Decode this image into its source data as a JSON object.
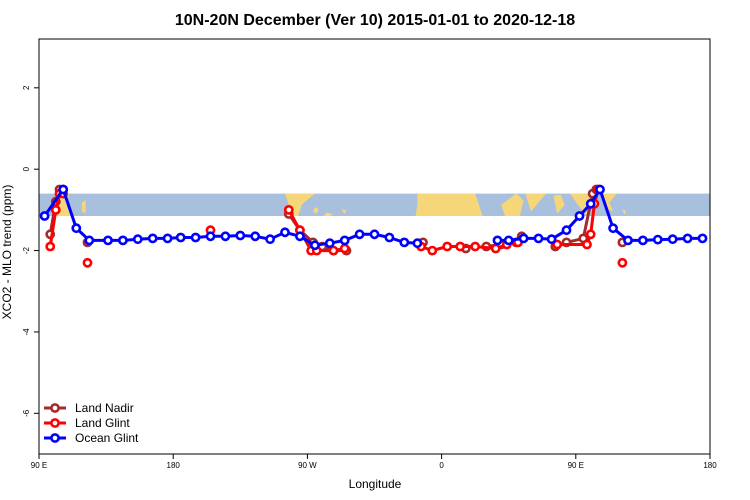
{
  "chart_data": {
    "type": "line",
    "title": "10N-20N December (Ver 10)   2015-01-01 to 2020-12-18",
    "xlabel": "Longitude",
    "ylabel": "XCO2 - MLO trend (ppm)",
    "xlim": [
      0,
      360
    ],
    "ylim": [
      -7,
      3.2
    ],
    "x_ticks": [
      {
        "value": 0,
        "label": "90 E"
      },
      {
        "value": 72,
        "label": "180"
      },
      {
        "value": 144,
        "label": "90 W"
      },
      {
        "value": 216,
        "label": "0"
      },
      {
        "value": 288,
        "label": "90 E"
      },
      {
        "value": 360,
        "label": "180"
      }
    ],
    "y_ticks": [
      {
        "value": 2,
        "label": "2"
      },
      {
        "value": 0,
        "label": "0"
      },
      {
        "value": -2,
        "label": "-2"
      },
      {
        "value": -4,
        "label": "-4"
      },
      {
        "value": -6,
        "label": "-6"
      }
    ],
    "grid": false,
    "legend_position": "bottom-left",
    "map_band": {
      "y_top": -0.6,
      "y_bottom": -1.15,
      "ocean_color": "#a8bfdd",
      "land_color": "#f5d77a"
    },
    "series": [
      {
        "name": "Land Nadir",
        "color": "#a52a2a",
        "segments": [
          [
            [
              6,
              -1.6
            ],
            [
              9,
              -0.8
            ],
            [
              11,
              -0.5
            ],
            [
              13,
              -0.5
            ]
          ],
          [
            [
              26,
              -1.8
            ]
          ],
          [
            [
              134,
              -1.1
            ],
            [
              140,
              -1.5
            ],
            [
              147,
              -1.8
            ]
          ],
          [
            [
              152,
              -1.9
            ],
            [
              158,
              -2.0
            ],
            [
              165,
              -2.0
            ]
          ],
          [
            [
              206,
              -1.8
            ]
          ],
          [
            [
              229,
              -1.95
            ]
          ],
          [
            [
              240,
              -1.9
            ],
            [
              248,
              -1.85
            ],
            [
              256,
              -1.8
            ],
            [
              259,
              -1.65
            ]
          ],
          [
            [
              277,
              -1.9
            ],
            [
              283,
              -1.8
            ],
            [
              292,
              -1.7
            ],
            [
              297,
              -0.6
            ],
            [
              299,
              -0.5
            ]
          ],
          [
            [
              313,
              -1.8
            ]
          ]
        ]
      },
      {
        "name": "Land Glint",
        "color": "#ff0000",
        "segments": [
          [
            [
              6,
              -1.9
            ],
            [
              9,
              -1.0
            ],
            [
              11,
              -0.6
            ],
            [
              13,
              -0.6
            ]
          ],
          [
            [
              26,
              -2.3
            ]
          ],
          [
            [
              92,
              -1.5
            ]
          ],
          [
            [
              134,
              -1.0
            ],
            [
              140,
              -1.5
            ],
            [
              146,
              -2.0
            ],
            [
              149,
              -2.0
            ],
            [
              158,
              -2.0
            ],
            [
              164,
              -1.95
            ]
          ],
          [
            [
              205,
              -1.9
            ],
            [
              211,
              -2.0
            ],
            [
              219,
              -1.9
            ],
            [
              226,
              -1.9
            ],
            [
              234,
              -1.9
            ],
            [
              245,
              -1.95
            ],
            [
              251,
              -1.85
            ],
            [
              257,
              -1.8
            ]
          ],
          [
            [
              278,
              -1.85
            ],
            [
              294,
              -1.85
            ],
            [
              296,
              -1.6
            ],
            [
              298,
              -0.85
            ],
            [
              300,
              -0.5
            ]
          ],
          [
            [
              313,
              -2.3
            ]
          ]
        ]
      },
      {
        "name": "Ocean Glint",
        "color": "#0000ff",
        "segments": [
          [
            [
              3,
              -1.15
            ],
            [
              13,
              -0.5
            ],
            [
              20,
              -1.45
            ],
            [
              27,
              -1.75
            ],
            [
              37,
              -1.75
            ],
            [
              45,
              -1.75
            ],
            [
              53,
              -1.72
            ],
            [
              61,
              -1.7
            ],
            [
              69,
              -1.7
            ],
            [
              76,
              -1.68
            ],
            [
              84,
              -1.68
            ],
            [
              92,
              -1.65
            ],
            [
              100,
              -1.65
            ],
            [
              108,
              -1.63
            ],
            [
              116,
              -1.65
            ],
            [
              124,
              -1.72
            ],
            [
              132,
              -1.55
            ],
            [
              140,
              -1.65
            ],
            [
              148,
              -1.87
            ],
            [
              156,
              -1.82
            ],
            [
              164,
              -1.75
            ],
            [
              172,
              -1.6
            ],
            [
              180,
              -1.6
            ],
            [
              188,
              -1.68
            ],
            [
              196,
              -1.8
            ],
            [
              203,
              -1.82
            ]
          ],
          [
            [
              246,
              -1.75
            ],
            [
              252,
              -1.75
            ],
            [
              260,
              -1.7
            ],
            [
              268,
              -1.7
            ],
            [
              275,
              -1.72
            ],
            [
              283,
              -1.5
            ],
            [
              290,
              -1.15
            ],
            [
              296,
              -0.85
            ],
            [
              301,
              -0.5
            ],
            [
              308,
              -1.45
            ],
            [
              316,
              -1.75
            ],
            [
              324,
              -1.75
            ],
            [
              332,
              -1.73
            ],
            [
              340,
              -1.72
            ],
            [
              348,
              -1.7
            ],
            [
              356,
              -1.7
            ]
          ]
        ]
      }
    ]
  }
}
